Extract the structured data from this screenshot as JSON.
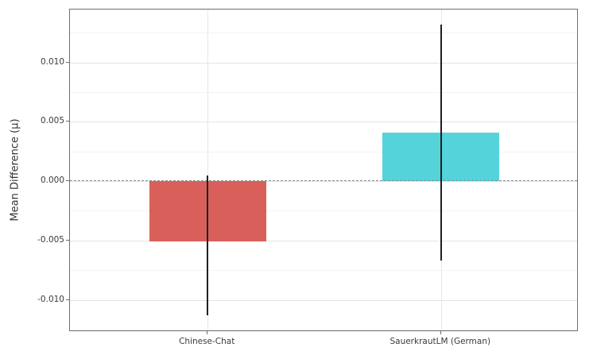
{
  "figure": {
    "background": "#ffffff",
    "text_color": "#3b3b3b"
  },
  "chart_data": {
    "type": "bar",
    "title": "",
    "xlabel": "",
    "ylabel": "Mean Difference (μ)",
    "categories": [
      "Chinese-Chat",
      "SauerkrautLM (German)"
    ],
    "values": [
      -0.0051,
      0.0041
    ],
    "series": [
      {
        "name": "Chinese-Chat",
        "value": -0.0051,
        "error_low": -0.0113,
        "error_high": 0.0005,
        "color": "#d9605a"
      },
      {
        "name": "SauerkrautLM (German)",
        "value": 0.0041,
        "error_low": -0.0067,
        "error_high": 0.0132,
        "color": "#55d3db"
      }
    ],
    "bar_colors": [
      "#d9605a",
      "#55d3db"
    ],
    "error_bar_color": "#1f1f1f",
    "ylim": [
      -0.0127,
      0.01445
    ],
    "xlim": [
      -0.59,
      1.59
    ],
    "bar_width": 0.5,
    "yticks": [
      -0.01,
      -0.005,
      0,
      0.005,
      0.01
    ],
    "ytick_labels": [
      "-0.010",
      "-0.005",
      "0.000",
      "0.005",
      "0.010"
    ],
    "minor_tick_step": 0.0025,
    "grid": true,
    "zero_line": true,
    "legend_position": "none"
  }
}
